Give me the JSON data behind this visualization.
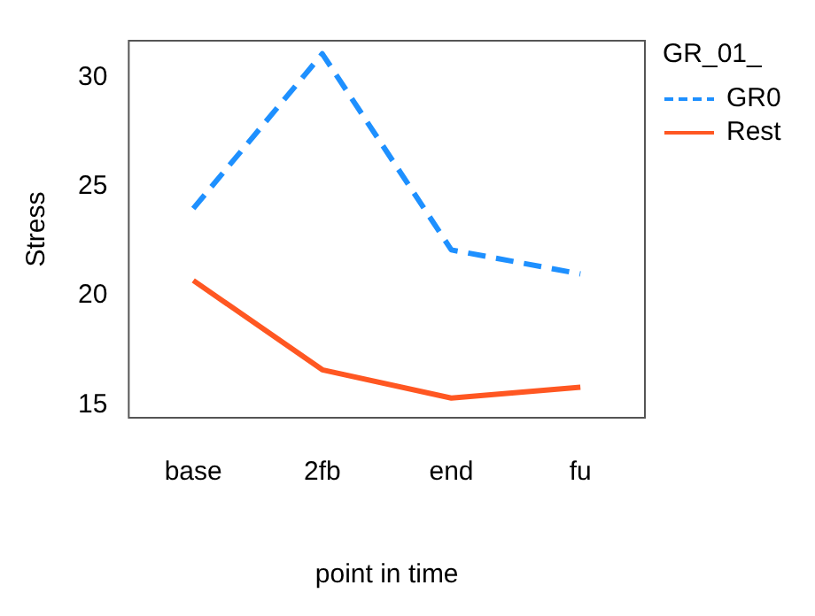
{
  "chart_data": {
    "type": "line",
    "xlabel": "point in time",
    "ylabel": "Stress",
    "legend_title": "GR_01_",
    "categories": [
      "base",
      "2fb",
      "end",
      "fu"
    ],
    "series": [
      {
        "name": "GR0",
        "color": "#1e90ff",
        "values": [
          24.0,
          31.1,
          22.1,
          21.0
        ],
        "line_style": "dashed"
      },
      {
        "name": "Rest",
        "color": "#ff5722",
        "values": [
          20.7,
          16.6,
          15.3,
          15.8
        ],
        "line_style": "solid"
      }
    ],
    "ylim": [
      14.4,
      31.7
    ],
    "yticks": [
      15,
      20,
      25,
      30
    ],
    "grid": false,
    "legend": "top right",
    "marker": "none"
  }
}
